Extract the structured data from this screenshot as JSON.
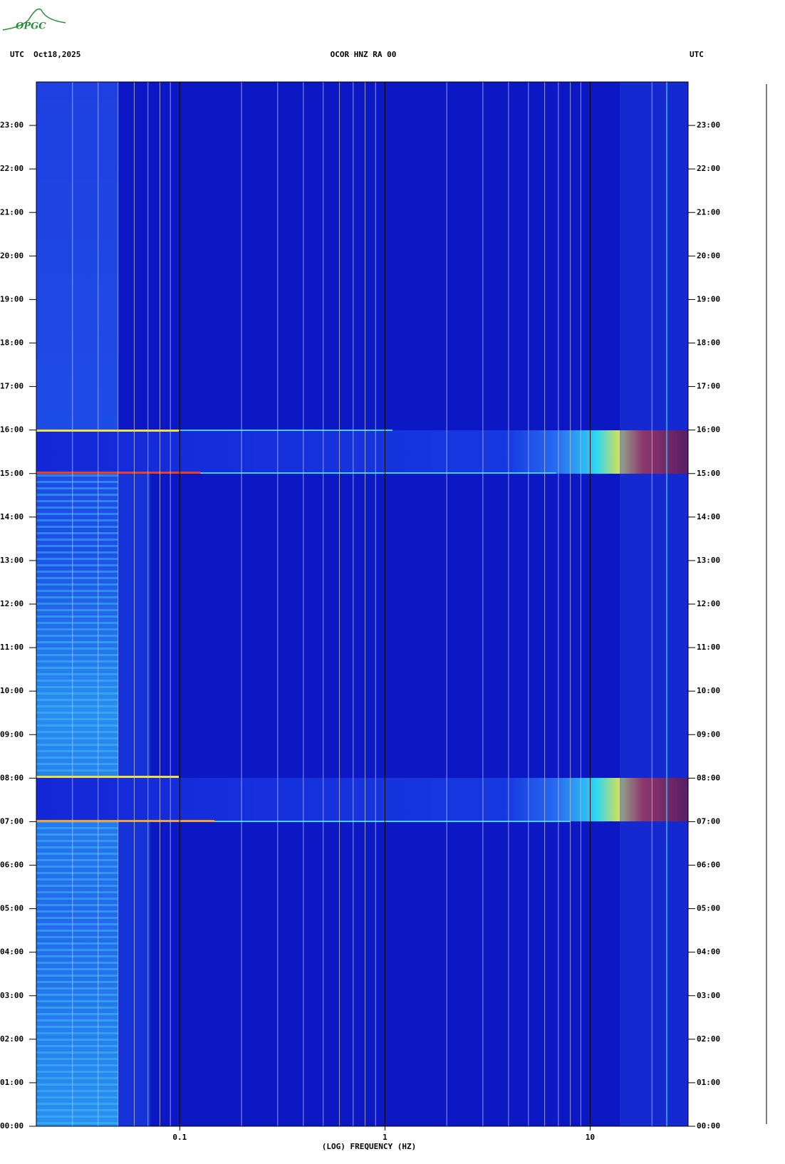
{
  "logo": {
    "text": "OPGC"
  },
  "header": {
    "left": "UTC  Oct18,2025",
    "center": "OCOR HNZ RA 00",
    "right": "UTC"
  },
  "chart_data": {
    "type": "spectrogram",
    "xlabel": "(LOG) FREQUENCY (HZ)",
    "xscale": "log",
    "xlim": [
      0.02,
      30
    ],
    "xticks": [
      0.1,
      1,
      10
    ],
    "xminor": [
      0.03,
      0.04,
      0.05,
      0.06,
      0.07,
      0.08,
      0.09,
      0.2,
      0.3,
      0.4,
      0.5,
      0.6,
      0.7,
      0.8,
      0.9,
      2,
      3,
      4,
      5,
      6,
      7,
      8,
      9,
      20
    ],
    "ylim": [
      0,
      24
    ],
    "yticks": [
      {
        "value": 0,
        "label": "00:00"
      },
      {
        "value": 1,
        "label": "01:00"
      },
      {
        "value": 2,
        "label": "02:00"
      },
      {
        "value": 3,
        "label": "03:00"
      },
      {
        "value": 4,
        "label": "04:00"
      },
      {
        "value": 5,
        "label": "05:00"
      },
      {
        "value": 6,
        "label": "06:00"
      },
      {
        "value": 7,
        "label": "07:00"
      },
      {
        "value": 8,
        "label": "08:00"
      },
      {
        "value": 9,
        "label": "09:00"
      },
      {
        "value": 10,
        "label": "10:00"
      },
      {
        "value": 11,
        "label": "11:00"
      },
      {
        "value": 12,
        "label": "12:00"
      },
      {
        "value": 13,
        "label": "13:00"
      },
      {
        "value": 14,
        "label": "14:00"
      },
      {
        "value": 15,
        "label": "15:00"
      },
      {
        "value": 16,
        "label": "16:00"
      },
      {
        "value": 17,
        "label": "17:00"
      },
      {
        "value": 18,
        "label": "18:00"
      },
      {
        "value": 19,
        "label": "19:00"
      },
      {
        "value": 20,
        "label": "20:00"
      },
      {
        "value": 21,
        "label": "21:00"
      },
      {
        "value": 22,
        "label": "22:00"
      },
      {
        "value": 23,
        "label": "23:00"
      }
    ],
    "grid": true
  }
}
